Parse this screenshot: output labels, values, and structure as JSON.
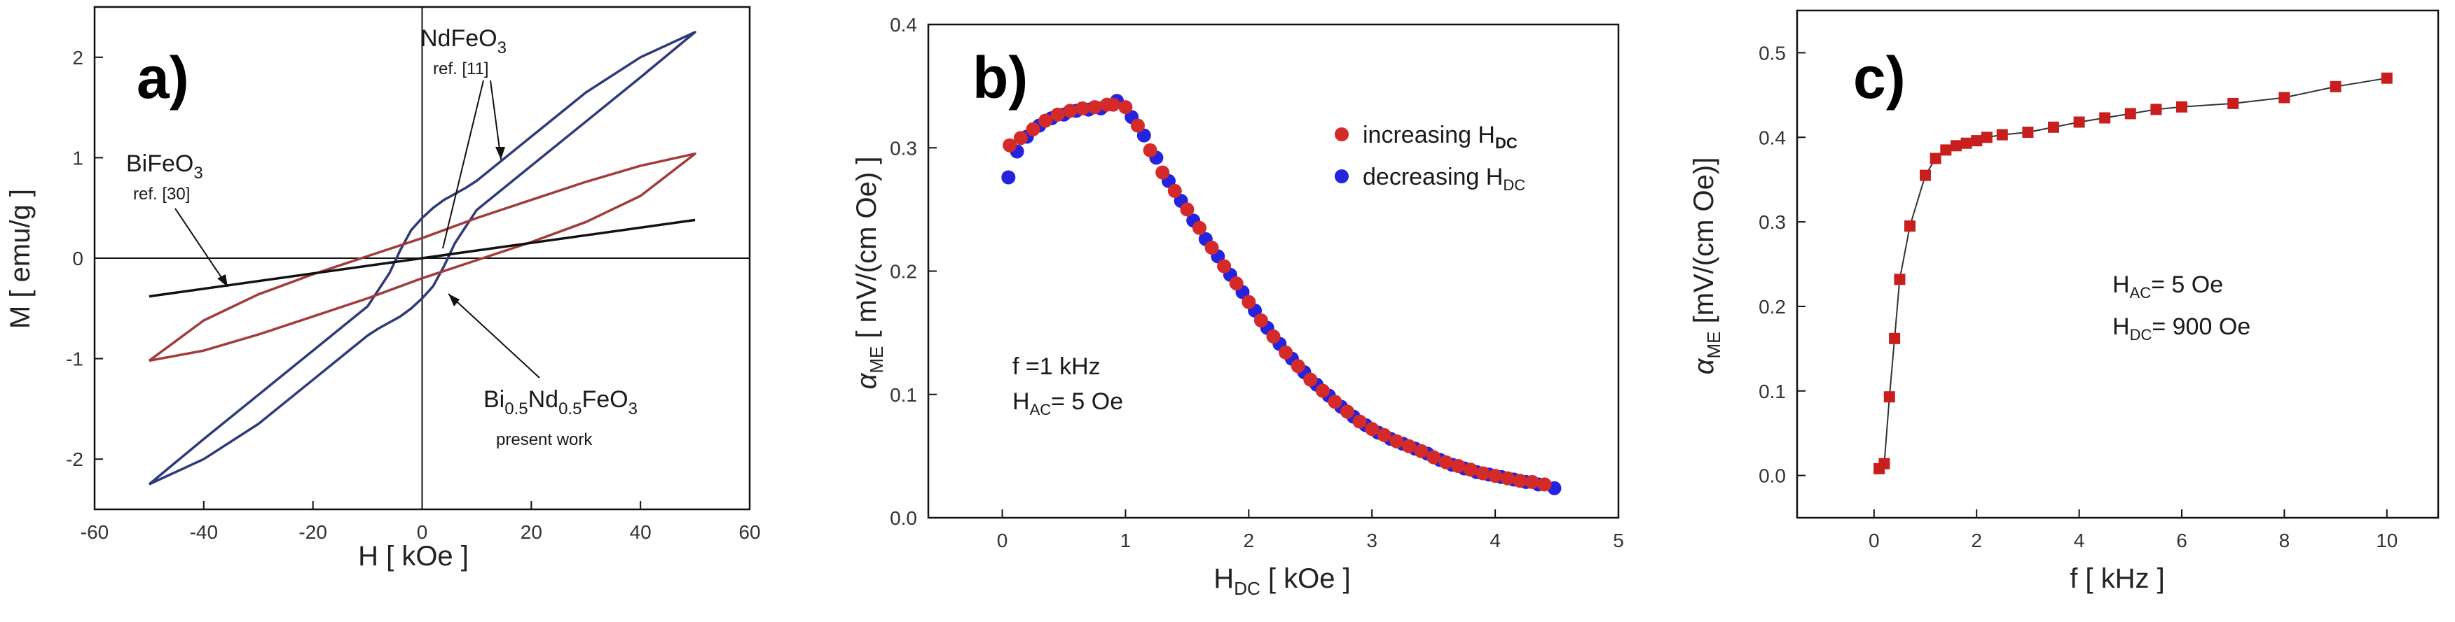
{
  "figure": {
    "panels": [
      "a)",
      "b)",
      "c)"
    ]
  },
  "colors": {
    "blue_curve": "#2f3a7a",
    "red_curve": "#a23b3b",
    "black_curve": "#111111",
    "marker_red": "#d42a2a",
    "marker_blue": "#2323e0",
    "square_red": "#c81e1e"
  },
  "chart_data": [
    {
      "id": "a",
      "type": "line",
      "panel_label": "a)",
      "xlabel": "H  [ kOe ]",
      "ylabel": "M [ emu/g ]",
      "xlim": [
        -60,
        60
      ],
      "ylim": [
        -2.5,
        2.5
      ],
      "xticks": [
        -60,
        -40,
        -20,
        0,
        20,
        40,
        60
      ],
      "xtick_labels": [
        "-60",
        "-40",
        "-20",
        "0",
        "20",
        "40",
        "60"
      ],
      "yticks": [
        -2,
        -1,
        0,
        1,
        2
      ],
      "ytick_labels": [
        "-2",
        "-1",
        "0",
        "1",
        "2"
      ],
      "zero_lines": true,
      "series": [
        {
          "name": "NdFeO3",
          "color": "#2f3a7a",
          "x": [
            -50,
            -40,
            -30,
            -20,
            -10,
            -6,
            -4,
            -2,
            0,
            2,
            4,
            6,
            8,
            10,
            20,
            30,
            40,
            50,
            40,
            30,
            20,
            10,
            6,
            4,
            2,
            0,
            -2,
            -4,
            -6,
            -8,
            -10,
            -20,
            -30,
            -40,
            -50
          ],
          "y": [
            -2.25,
            -1.8,
            -1.36,
            -0.92,
            -0.48,
            -0.15,
            0.08,
            0.28,
            0.4,
            0.5,
            0.58,
            0.64,
            0.7,
            0.77,
            1.21,
            1.65,
            2.0,
            2.25,
            1.8,
            1.36,
            0.92,
            0.48,
            0.15,
            -0.08,
            -0.28,
            -0.4,
            -0.5,
            -0.58,
            -0.64,
            -0.7,
            -0.77,
            -1.21,
            -1.65,
            -2.0,
            -2.25
          ]
        },
        {
          "name": "Bi0.5Nd0.5FeO3",
          "color": "#a23b3b",
          "x": [
            -50,
            -40,
            -30,
            -20,
            -10,
            0,
            10,
            20,
            30,
            40,
            50,
            40,
            30,
            20,
            10,
            0,
            -10,
            -20,
            -30,
            -40,
            -50
          ],
          "y": [
            -1.02,
            -0.62,
            -0.36,
            -0.16,
            0.02,
            0.2,
            0.4,
            0.58,
            0.76,
            0.92,
            1.04,
            0.62,
            0.36,
            0.16,
            -0.02,
            -0.2,
            -0.4,
            -0.58,
            -0.76,
            -0.92,
            -1.02
          ]
        },
        {
          "name": "BiFeO3",
          "color": "#111111",
          "x": [
            -50,
            50
          ],
          "y": [
            -0.38,
            0.38
          ]
        }
      ],
      "annotations": {
        "ndfeo3": {
          "label": "NdFeO",
          "sub": "3",
          "ref": "ref. [11]"
        },
        "bifeo3": {
          "label": "BiFeO",
          "sub": "3",
          "ref": "ref. [30]"
        },
        "bndfo": {
          "p1": "Bi",
          "s1": "0.5",
          "p2": "Nd",
          "s2": "0.5",
          "p3": "FeO",
          "s3": "3",
          "line2": "present work"
        }
      }
    },
    {
      "id": "b",
      "type": "scatter",
      "panel_label": "b)",
      "xlabel_main": "H",
      "xlabel_sub": "DC",
      "xlabel_rest": " [ kOe ]",
      "ylabel_sym": "α",
      "ylabel_sub": "ME",
      "ylabel_rest": "  [ mV/(cm Oe) ]",
      "xlim": [
        -0.6,
        5
      ],
      "ylim": [
        0,
        0.4
      ],
      "xticks": [
        0,
        1,
        2,
        3,
        4,
        5
      ],
      "xtick_labels": [
        "0",
        "1",
        "2",
        "3",
        "4",
        "5"
      ],
      "yticks": [
        0.0,
        0.1,
        0.2,
        0.3,
        0.4
      ],
      "ytick_labels": [
        "0.0",
        "0.1",
        "0.2",
        "0.3",
        "0.4"
      ],
      "legend_position": "top-right",
      "series": [
        {
          "name": "increasing",
          "legend_label": "increasing H",
          "legend_sub": "DC",
          "color": "#d42a2a",
          "x": [
            0.06,
            0.15,
            0.25,
            0.35,
            0.45,
            0.55,
            0.65,
            0.75,
            0.85,
            0.9,
            1.0,
            1.1,
            1.2,
            1.3,
            1.4,
            1.5,
            1.6,
            1.7,
            1.8,
            1.9,
            2.0,
            2.1,
            2.2,
            2.3,
            2.4,
            2.5,
            2.6,
            2.7,
            2.8,
            2.9,
            3.0,
            3.1,
            3.2,
            3.3,
            3.4,
            3.5,
            3.6,
            3.7,
            3.8,
            3.9,
            4.0,
            4.1,
            4.2,
            4.3,
            4.4
          ],
          "y": [
            0.302,
            0.308,
            0.315,
            0.322,
            0.327,
            0.33,
            0.332,
            0.333,
            0.335,
            0.335,
            0.333,
            0.318,
            0.298,
            0.28,
            0.265,
            0.25,
            0.235,
            0.219,
            0.204,
            0.19,
            0.175,
            0.16,
            0.147,
            0.134,
            0.123,
            0.112,
            0.103,
            0.094,
            0.086,
            0.078,
            0.072,
            0.067,
            0.062,
            0.058,
            0.054,
            0.049,
            0.045,
            0.042,
            0.039,
            0.036,
            0.034,
            0.032,
            0.03,
            0.029,
            0.027
          ]
        },
        {
          "name": "decreasing",
          "legend_label": "decreasing H",
          "legend_sub": "DC",
          "color": "#2323e0",
          "x": [
            0.05,
            0.12,
            0.2,
            0.3,
            0.4,
            0.5,
            0.6,
            0.7,
            0.8,
            0.93,
            1.05,
            1.15,
            1.25,
            1.35,
            1.45,
            1.55,
            1.65,
            1.75,
            1.85,
            1.95,
            2.05,
            2.15,
            2.25,
            2.35,
            2.45,
            2.55,
            2.65,
            2.75,
            2.85,
            2.95,
            3.05,
            3.15,
            3.25,
            3.35,
            3.45,
            3.55,
            3.65,
            3.75,
            3.85,
            3.95,
            4.05,
            4.15,
            4.25,
            4.35,
            4.48
          ],
          "y": [
            0.276,
            0.297,
            0.309,
            0.318,
            0.324,
            0.327,
            0.33,
            0.331,
            0.332,
            0.338,
            0.325,
            0.31,
            0.292,
            0.273,
            0.257,
            0.241,
            0.226,
            0.212,
            0.197,
            0.183,
            0.168,
            0.154,
            0.141,
            0.129,
            0.118,
            0.108,
            0.099,
            0.09,
            0.082,
            0.075,
            0.069,
            0.064,
            0.06,
            0.056,
            0.052,
            0.047,
            0.043,
            0.04,
            0.037,
            0.035,
            0.033,
            0.031,
            0.029,
            0.027,
            0.024
          ]
        }
      ],
      "annotations": {
        "freq": "f =1 kHz",
        "hac_main": "H",
        "hac_sub": "AC",
        "hac_rest": "= 5 Oe"
      }
    },
    {
      "id": "c",
      "type": "line",
      "panel_label": "c)",
      "xlabel": "f  [ kHz ]",
      "ylabel_sym": "α",
      "ylabel_sub": "ME",
      "ylabel_rest": " [mV/(cm Oe)]",
      "xlim": [
        -1.5,
        11
      ],
      "ylim": [
        -0.05,
        0.55
      ],
      "xticks": [
        0,
        2,
        4,
        6,
        8,
        10
      ],
      "xtick_labels": [
        "0",
        "2",
        "4",
        "6",
        "8",
        "10"
      ],
      "yticks": [
        0.0,
        0.1,
        0.2,
        0.3,
        0.4,
        0.5
      ],
      "ytick_labels": [
        "0.0",
        "0.1",
        "0.2",
        "0.3",
        "0.4",
        "0.5"
      ],
      "series": [
        {
          "name": "alpha_ME vs f",
          "color": "#c81e1e",
          "x": [
            0.1,
            0.2,
            0.3,
            0.4,
            0.5,
            0.7,
            1.0,
            1.2,
            1.4,
            1.6,
            1.8,
            2.0,
            2.2,
            2.5,
            3.0,
            3.5,
            4.0,
            4.5,
            5.0,
            5.5,
            6.0,
            7.0,
            8.0,
            9.0,
            10.0
          ],
          "y": [
            0.008,
            0.014,
            0.093,
            0.162,
            0.232,
            0.295,
            0.355,
            0.375,
            0.385,
            0.39,
            0.393,
            0.396,
            0.4,
            0.403,
            0.406,
            0.412,
            0.418,
            0.423,
            0.428,
            0.433,
            0.436,
            0.44,
            0.447,
            0.46,
            0.47
          ]
        }
      ],
      "annotations": {
        "hac_main": "H",
        "hac_sub": "AC",
        "hac_rest": "= 5 Oe",
        "hdc_main": "H",
        "hdc_sub": "DC",
        "hdc_rest": "= 900 Oe"
      }
    }
  ]
}
